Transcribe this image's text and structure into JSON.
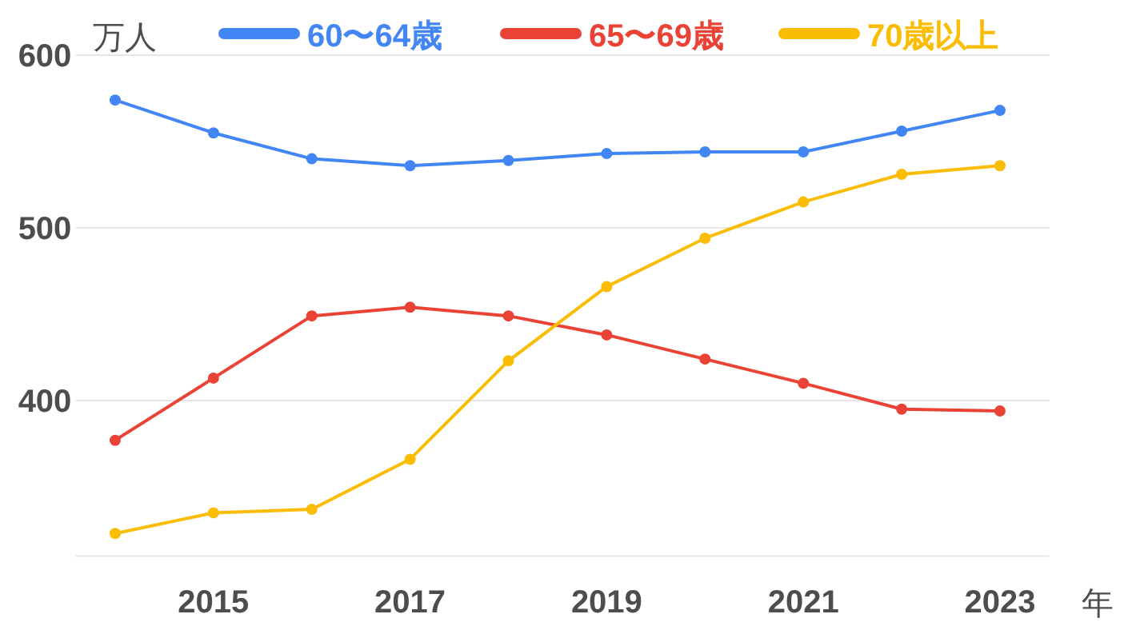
{
  "chart_data": {
    "type": "line",
    "ylabel": "万人",
    "xlabel": "年",
    "x": [
      2014,
      2015,
      2016,
      2017,
      2018,
      2019,
      2020,
      2021,
      2022,
      2023
    ],
    "series": [
      {
        "name": "60〜64歳",
        "color": "#4285f4",
        "values": [
          574,
          555,
          540,
          536,
          539,
          543,
          544,
          544,
          556,
          568
        ]
      },
      {
        "name": "65〜69歳",
        "color": "#ea4335",
        "values": [
          377,
          413,
          449,
          454,
          449,
          438,
          424,
          410,
          395,
          394
        ]
      },
      {
        "name": "70歳以上",
        "color": "#fbbc04",
        "values": [
          323,
          335,
          337,
          366,
          423,
          466,
          494,
          515,
          531,
          536
        ]
      }
    ],
    "xlim": [
      2013.6,
      2023.5
    ],
    "ylim": [
      310,
      600
    ],
    "xticks": [
      2015,
      2017,
      2019,
      2021,
      2023
    ],
    "yticks": [
      400,
      500,
      600
    ],
    "grid": "y",
    "legend": "top",
    "marker": "circle",
    "line_style": "solid"
  }
}
